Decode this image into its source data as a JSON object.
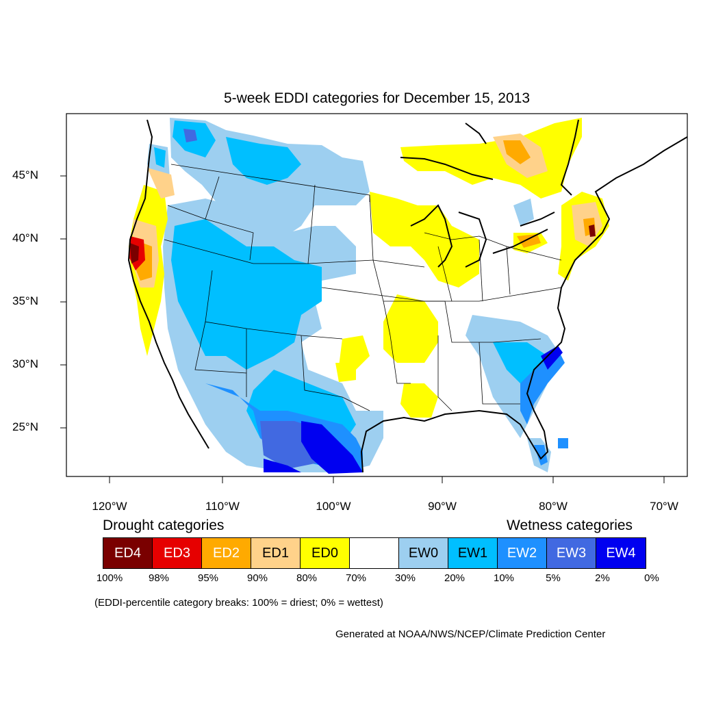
{
  "title": "5-week EDDI categories for December 15, 2013",
  "lat_labels": [
    "45°N",
    "40°N",
    "35°N",
    "30°N",
    "25°N"
  ],
  "lon_labels": [
    "120°W",
    "110°W",
    "100°W",
    "90°W",
    "80°W",
    "70°W"
  ],
  "legend": {
    "drought_heading": "Drought categories",
    "wetness_heading": "Wetness categories",
    "categories": [
      {
        "label": "ED4",
        "color": "#7a0000",
        "text_color": "#ffffff"
      },
      {
        "label": "ED3",
        "color": "#e60000",
        "text_color": "#ffffff"
      },
      {
        "label": "ED2",
        "color": "#ffaa00",
        "text_color": "#ffffff"
      },
      {
        "label": "ED1",
        "color": "#ffd28a",
        "text_color": "#000000"
      },
      {
        "label": "ED0",
        "color": "#ffff00",
        "text_color": "#000000"
      },
      {
        "label": "",
        "color": "#ffffff",
        "text_color": "#000000"
      },
      {
        "label": "EW0",
        "color": "#9dcff0",
        "text_color": "#000000"
      },
      {
        "label": "EW1",
        "color": "#00bfff",
        "text_color": "#000000"
      },
      {
        "label": "EW2",
        "color": "#1e90ff",
        "text_color": "#ffffff"
      },
      {
        "label": "EW3",
        "color": "#4169e1",
        "text_color": "#ffffff"
      },
      {
        "label": "EW4",
        "color": "#0000f0",
        "text_color": "#ffffff"
      }
    ],
    "percentiles": [
      "100%",
      "98%",
      "95%",
      "90%",
      "80%",
      "70%",
      "30%",
      "20%",
      "10%",
      "5%",
      "2%",
      "0%"
    ]
  },
  "note": "(EDDI-percentile category breaks: 100% = driest; 0% = wettest)",
  "credit": "Generated at NOAA/NWS/NCEP/Climate Prediction Center",
  "map_fills": {
    "ew0": "#9dcff0",
    "ew1": "#00bfff",
    "ew2": "#1e90ff",
    "ew3": "#4169e1",
    "ew4": "#0000f0",
    "ed0": "#ffff00",
    "ed1": "#ffd28a",
    "ed2": "#ffaa00",
    "ed3": "#e60000",
    "ed4": "#7a0000"
  }
}
